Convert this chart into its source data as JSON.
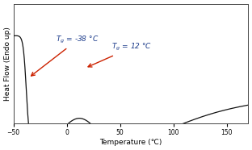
{
  "x_min": -50,
  "x_max": 170,
  "x_ticks": [
    -50,
    0,
    50,
    100,
    150
  ],
  "xlabel": "Temperature (℃)",
  "ylabel": "Heat Flow (Endo up)",
  "bg_color": "#ffffff",
  "line_color": "#111111",
  "annotation1_text": "$T_g$ = -38 °C",
  "annotation2_text": "$T_g$ = 12 °C",
  "annotation_color": "#1a3a8a",
  "arrow_color": "#cc2200",
  "label_fontsize": 6.5,
  "tick_fontsize": 5.5,
  "annot_fontsize": 6.5
}
